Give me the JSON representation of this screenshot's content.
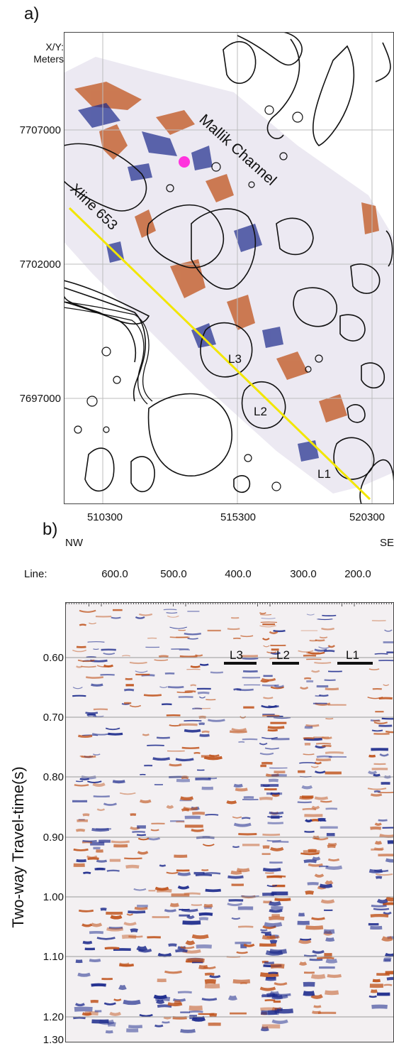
{
  "panel_a": {
    "label": "a)",
    "xy_label_line1": "X/Y:",
    "xy_label_line2": "Meters",
    "y_ticks": [
      "7707000",
      "7702000",
      "7697000"
    ],
    "x_ticks": [
      "510300",
      "515300",
      "520300"
    ],
    "channel_label": "Mallik Channel",
    "xline_label": "Xline 653",
    "lake_labels": [
      "L3",
      "L2",
      "L1"
    ],
    "colors": {
      "line": "#f2e600",
      "marker": "#ff33dd",
      "red": "#c0541d",
      "blue": "#1c2a8c",
      "grid": "#bdbdbd"
    }
  },
  "panel_b": {
    "label": "b)",
    "dir_left": "NW",
    "dir_right": "SE",
    "line_label": "Line:",
    "line_ticks": [
      "600.0",
      "500.0",
      "400.0",
      "300.0",
      "200.0"
    ],
    "ylabel": "Two-way Travel-time(s)",
    "time_ticks": [
      "0.60",
      "0.70",
      "0.80",
      "0.90",
      "1.00",
      "1.10",
      "1.20",
      "1.30"
    ],
    "lake_markers": [
      "L3",
      "L2",
      "L1"
    ]
  }
}
